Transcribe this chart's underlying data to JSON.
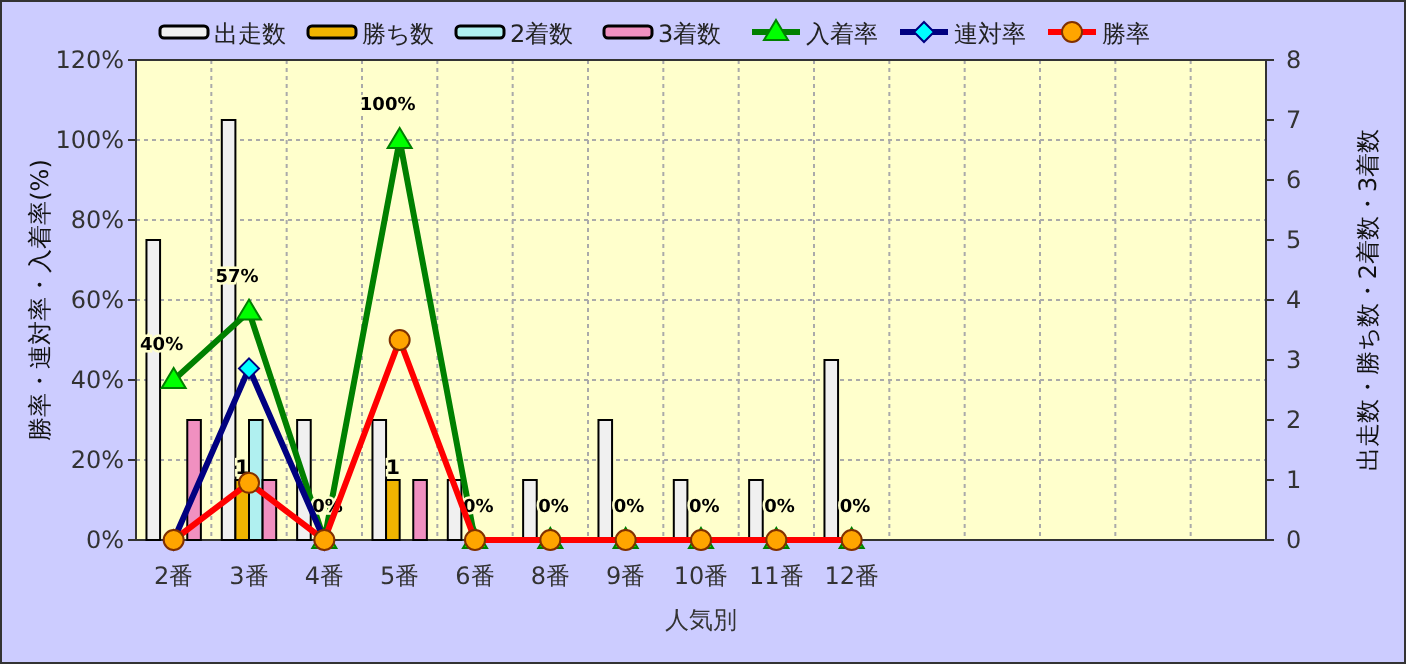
{
  "chart_data": {
    "type": "bar",
    "xlabel": "人気別",
    "ylabel": "勝率・連対率・入着率(%)",
    "y2label": "出走数・勝ち数・2着数・3着数",
    "categories": [
      "2番",
      "3番",
      "4番",
      "5番",
      "6番",
      "8番",
      "9番",
      "10番",
      "11番",
      "12番",
      null,
      null,
      null,
      null,
      null
    ],
    "ylim": [
      0,
      120
    ],
    "yticks": [
      {
        "value": 0,
        "label": "0%"
      },
      {
        "value": 20,
        "label": "20%"
      },
      {
        "value": 40,
        "label": "40%"
      },
      {
        "value": 60,
        "label": "60%"
      },
      {
        "value": 80,
        "label": "80%"
      },
      {
        "value": 100,
        "label": "100%"
      },
      {
        "value": 120,
        "label": "120%"
      }
    ],
    "y2lim": [
      0,
      8
    ],
    "y2ticks": [
      0,
      1,
      2,
      3,
      4,
      5,
      6,
      7,
      8
    ],
    "grid": true,
    "legend": "top",
    "series": [
      {
        "name": "出走数",
        "axis": "y2",
        "color": "#f0f0f0",
        "values": [
          5,
          7,
          2,
          2,
          1,
          1,
          2,
          1,
          1,
          3,
          null,
          null,
          null,
          null,
          null
        ]
      },
      {
        "name": "勝ち数",
        "axis": "y2",
        "color": "#f0b400",
        "values": [
          0,
          1,
          0,
          1,
          0,
          0,
          0,
          0,
          0,
          0,
          null,
          null,
          null,
          null,
          null
        ],
        "value_labels": [
          null,
          "1",
          null,
          "1",
          null,
          null,
          null,
          null,
          null,
          null,
          null,
          null,
          null,
          null,
          null
        ]
      },
      {
        "name": "2着数",
        "axis": "y2",
        "color": "#b0f0f0",
        "values": [
          0,
          2,
          0,
          0,
          0,
          0,
          0,
          0,
          0,
          0,
          null,
          null,
          null,
          null,
          null
        ]
      },
      {
        "name": "3着数",
        "axis": "y2",
        "color": "#f090c0",
        "values": [
          2,
          1,
          0,
          1,
          0,
          0,
          0,
          0,
          0,
          0,
          null,
          null,
          null,
          null,
          null
        ]
      },
      {
        "name": "入着率",
        "type": "line",
        "color": "#008000",
        "marker": "triangle",
        "values": [
          40,
          57.1,
          0,
          100,
          0,
          0,
          0,
          0,
          0,
          0,
          null,
          null,
          null,
          null,
          null
        ],
        "value_labels": [
          "40%",
          "57%",
          "0%",
          "100%",
          "0%",
          "0%",
          "0%",
          "0%",
          "0%",
          "0%",
          null,
          null,
          null,
          null,
          null
        ]
      },
      {
        "name": "連対率",
        "type": "line",
        "color": "#000080",
        "marker": "diamond",
        "values": [
          0,
          42.9,
          0,
          null,
          null,
          null,
          null,
          null,
          null,
          null,
          null,
          null,
          null,
          null,
          null
        ]
      },
      {
        "name": "勝率",
        "type": "line",
        "color": "#ff0000",
        "marker": "circle",
        "values": [
          0,
          14.3,
          0,
          50,
          0,
          0,
          0,
          0,
          0,
          0,
          null,
          null,
          null,
          null,
          null
        ]
      }
    ]
  }
}
